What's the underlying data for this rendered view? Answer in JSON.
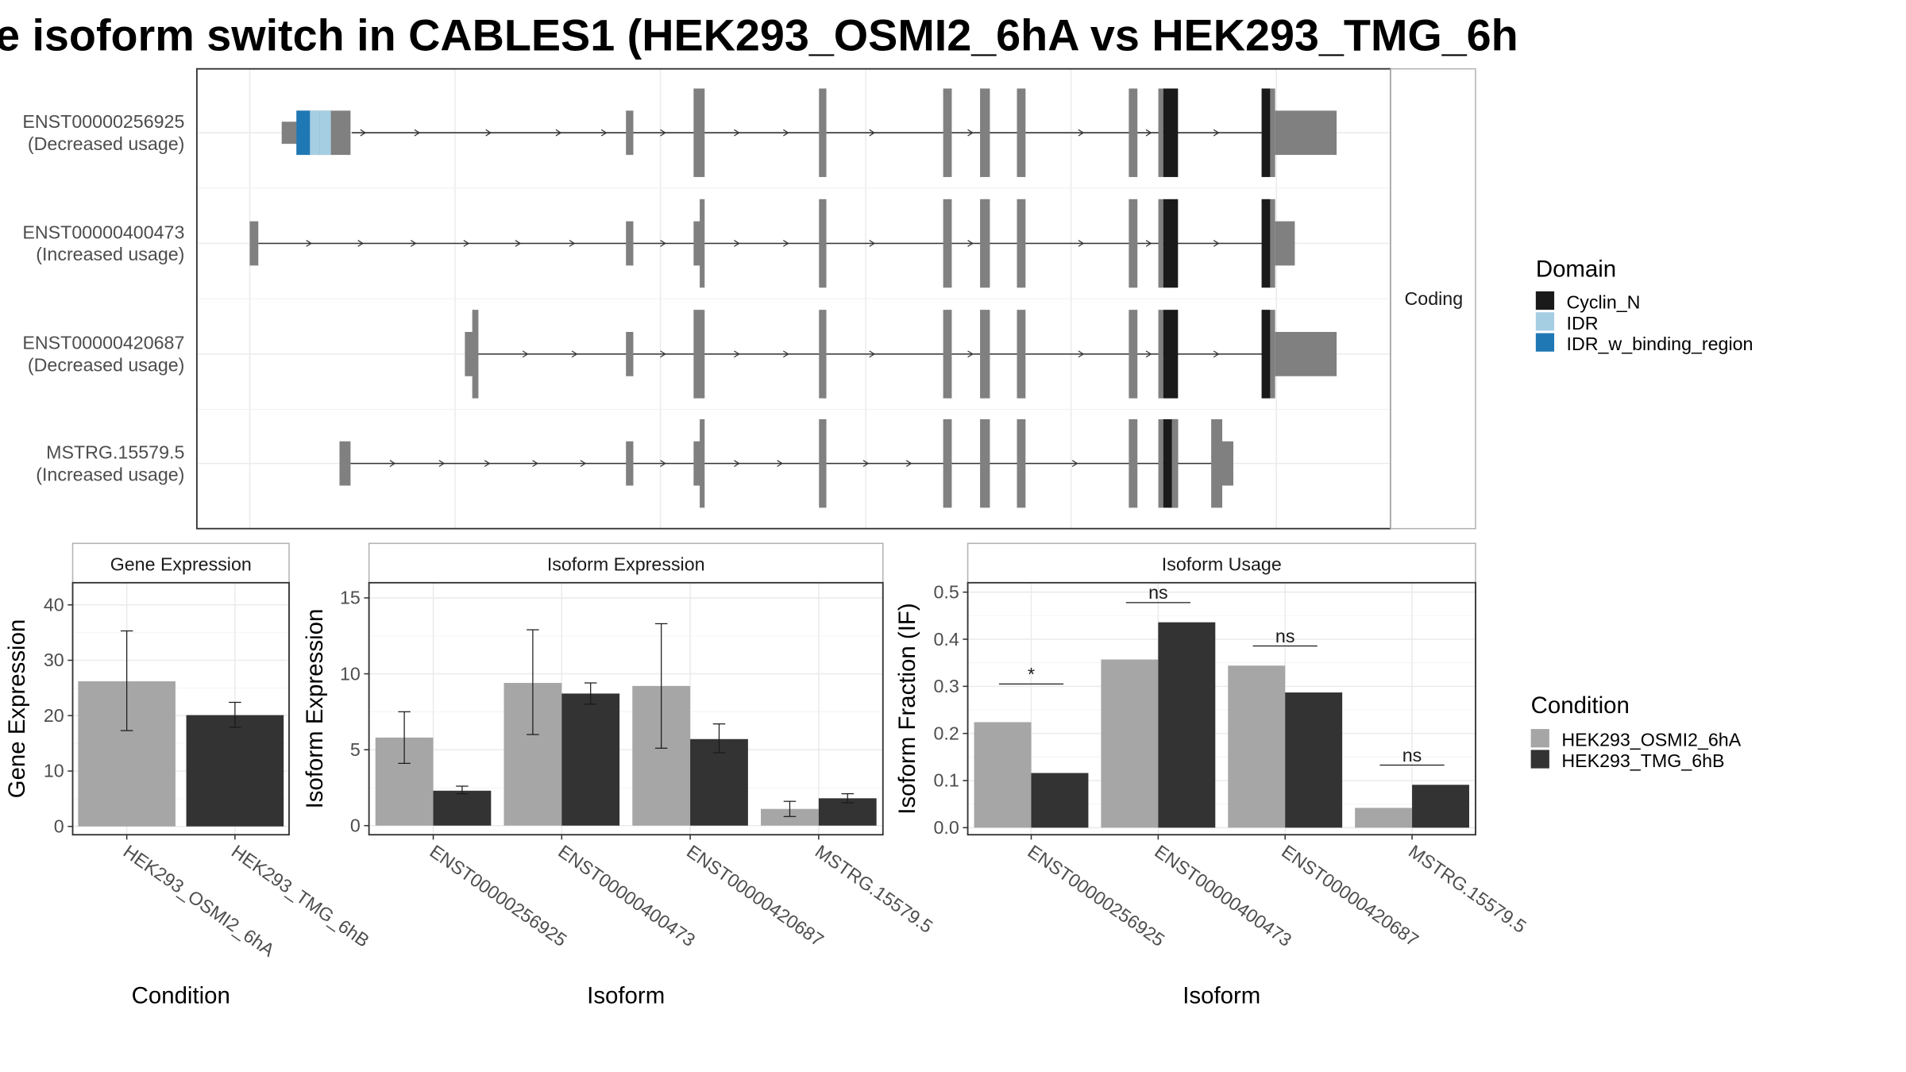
{
  "title": "e isoform switch in CABLES1 (HEK293_OSMI2_6hA vs HEK293_TMG_6h",
  "colors": {
    "exon": "#808080",
    "intron_line": "#333333",
    "domain_Cyclin_N": "#1a1a1a",
    "domain_IDR": "#a6cee3",
    "domain_IDR_w_binding_region": "#1f78b4",
    "cond_A": "#a6a6a6",
    "cond_B": "#333333",
    "grid": "#ebebeb",
    "panel_border": "#333333",
    "strip_border": "#b3b3b3"
  },
  "chart_data": [
    {
      "type": "gene-structure",
      "facet_label": "Coding",
      "isoforms": [
        {
          "id": "ENST00000256925",
          "usage": "(Decreased usage)"
        },
        {
          "id": "ENST00000400473",
          "usage": "(Increased usage)"
        },
        {
          "id": "ENST00000420687",
          "usage": "(Decreased usage)"
        },
        {
          "id": "MSTRG.15579.5",
          "usage": "(Increased usage)"
        }
      ],
      "legend": {
        "title": "Domain",
        "items": [
          {
            "label": "Cyclin_N",
            "color_key": "domain_Cyclin_N"
          },
          {
            "label": "IDR",
            "color_key": "domain_IDR"
          },
          {
            "label": "IDR_w_binding_region",
            "color_key": "domain_IDR_w_binding_region"
          }
        ]
      }
    },
    {
      "type": "bar",
      "strip": "Gene Expression",
      "xlabel": "Condition",
      "ylabel": "Gene Expression",
      "categories": [
        "HEK293_OSMI2_6hA",
        "HEK293_TMG_6hB"
      ],
      "values": [
        26.2,
        20.1
      ],
      "err_low": [
        17.3,
        17.9
      ],
      "err_high": [
        35.3,
        22.4
      ],
      "ylim": [
        -1.5,
        44
      ],
      "yticks": [
        0,
        10,
        20,
        30,
        40
      ]
    },
    {
      "type": "bar",
      "strip": "Isoform Expression",
      "xlabel": "Isoform",
      "ylabel": "Isoform Expression",
      "categories": [
        "ENST00000256925",
        "ENST00000400473",
        "ENST00000420687",
        "MSTRG.15579.5"
      ],
      "series": [
        {
          "name": "HEK293_OSMI2_6hA",
          "values": [
            5.8,
            9.4,
            9.2,
            1.1
          ],
          "err_low": [
            4.1,
            6.0,
            5.1,
            0.6
          ],
          "err_high": [
            7.5,
            12.9,
            13.3,
            1.6
          ]
        },
        {
          "name": "HEK293_TMG_6hB",
          "values": [
            2.3,
            8.7,
            5.7,
            1.8
          ],
          "err_low": [
            2.1,
            8.0,
            4.8,
            1.5
          ],
          "err_high": [
            2.6,
            9.4,
            6.7,
            2.1
          ]
        }
      ],
      "ylim": [
        -0.6,
        16.0
      ],
      "yticks": [
        0,
        5,
        10,
        15
      ]
    },
    {
      "type": "bar",
      "strip": "Isoform Usage",
      "xlabel": "Isoform",
      "ylabel": "Isoform Fraction (IF)",
      "categories": [
        "ENST00000256925",
        "ENST00000400473",
        "ENST00000420687",
        "MSTRG.15579.5"
      ],
      "series": [
        {
          "name": "HEK293_OSMI2_6hA",
          "values": [
            0.224,
            0.357,
            0.344,
            0.042
          ]
        },
        {
          "name": "HEK293_TMG_6hB",
          "values": [
            0.116,
            0.436,
            0.287,
            0.091
          ]
        }
      ],
      "significance": [
        "*",
        "ns",
        "ns",
        "ns"
      ],
      "ylim": [
        -0.015,
        0.52
      ],
      "yticks": [
        "0.0",
        "0.1",
        "0.2",
        "0.3",
        "0.4",
        "0.5"
      ],
      "legend": {
        "title": "Condition",
        "items": [
          {
            "label": "HEK293_OSMI2_6hA",
            "color_key": "cond_A"
          },
          {
            "label": "HEK293_TMG_6hB",
            "color_key": "cond_B"
          }
        ]
      }
    }
  ]
}
